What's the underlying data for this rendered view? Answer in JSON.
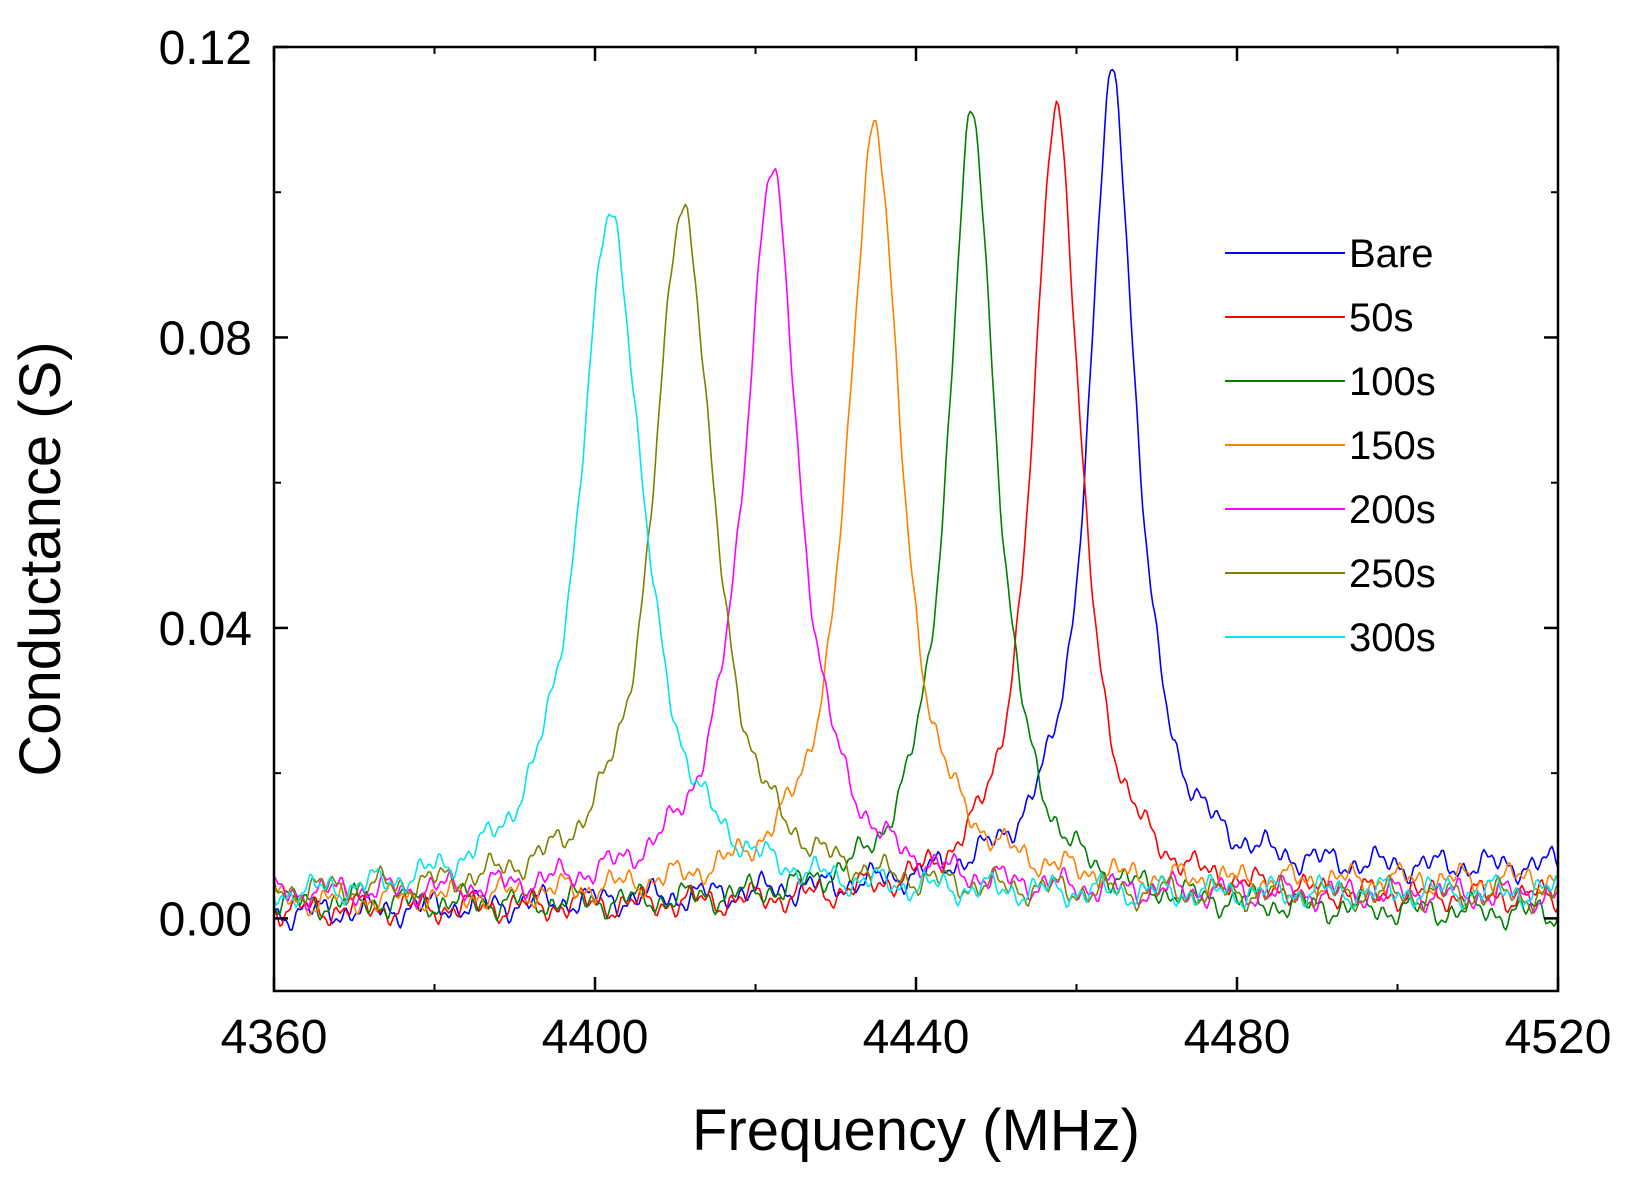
{
  "chart_data": {
    "type": "line",
    "title": "",
    "xlabel": "Frequency (MHz)",
    "ylabel": "Conductance (S)",
    "xlim": [
      4360,
      4520
    ],
    "ylim": [
      -0.01,
      0.12
    ],
    "xticks": [
      4360,
      4400,
      4440,
      4480,
      4520
    ],
    "xtick_labels": [
      "4360",
      "4400",
      "4440",
      "4480",
      "4520"
    ],
    "yticks": [
      0.0,
      0.04,
      0.08,
      0.12
    ],
    "ytick_labels": [
      "0.00",
      "0.04",
      "0.08",
      "0.12"
    ],
    "grid": false,
    "legend_position": "right",
    "series": [
      {
        "name": "Bare",
        "color": "#0000ff",
        "center": 4464.5,
        "peak": 0.111,
        "hwhm": 3.8,
        "tail": 0.16,
        "baseline": 0.0005,
        "baseline_slope": 4e-05,
        "phase": 0.0
      },
      {
        "name": "50s",
        "color": "#ff0000",
        "center": 4457.5,
        "peak": 0.11,
        "hwhm": 3.8,
        "tail": 0.16,
        "baseline": 0.001,
        "baseline_slope": 1e-05,
        "phase": 1.3
      },
      {
        "name": "100s",
        "color": "#008000",
        "center": 4447.0,
        "peak": 0.108,
        "hwhm": 4.0,
        "tail": 0.16,
        "baseline": 0.002,
        "baseline_slope": -1e-05,
        "phase": 2.1
      },
      {
        "name": "150s",
        "color": "#ff8000",
        "center": 4434.8,
        "peak": 0.106,
        "hwhm": 4.2,
        "tail": 0.16,
        "baseline": 0.002,
        "baseline_slope": 2e-05,
        "phase": 3.7
      },
      {
        "name": "200s",
        "color": "#ff00ff",
        "center": 4422.0,
        "peak": 0.099,
        "hwhm": 4.5,
        "tail": 0.16,
        "baseline": 0.003,
        "baseline_slope": 0.0,
        "phase": 4.4
      },
      {
        "name": "250s",
        "color": "#808000",
        "center": 4411.0,
        "peak": 0.095,
        "hwhm": 4.8,
        "tail": 0.17,
        "baseline": 0.003,
        "baseline_slope": 0.0,
        "phase": 5.2
      },
      {
        "name": "300s",
        "color": "#00e5ee",
        "center": 4402.0,
        "peak": 0.094,
        "hwhm": 5.2,
        "tail": 0.17,
        "baseline": 0.002,
        "baseline_slope": 1e-05,
        "phase": 6.0
      }
    ]
  }
}
